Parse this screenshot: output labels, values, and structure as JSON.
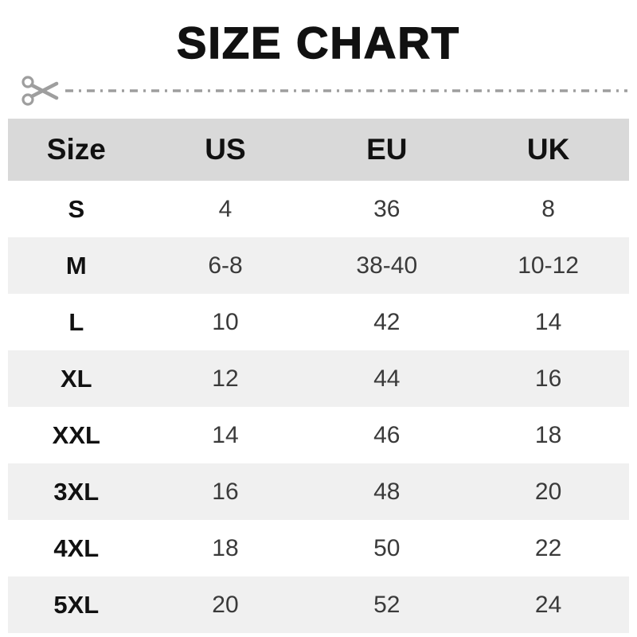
{
  "title": "SIZE CHART",
  "cut_line": {
    "icon": "scissors"
  },
  "chart_data": {
    "type": "table",
    "title": "SIZE CHART",
    "columns": [
      "Size",
      "US",
      "EU",
      "UK"
    ],
    "rows": [
      [
        "S",
        "4",
        "36",
        "8"
      ],
      [
        "M",
        "6-8",
        "38-40",
        "10-12"
      ],
      [
        "L",
        "10",
        "42",
        "14"
      ],
      [
        "XL",
        "12",
        "44",
        "16"
      ],
      [
        "XXL",
        "14",
        "46",
        "18"
      ],
      [
        "3XL",
        "16",
        "48",
        "20"
      ],
      [
        "4XL",
        "18",
        "50",
        "22"
      ],
      [
        "5XL",
        "20",
        "52",
        "24"
      ]
    ]
  },
  "colors": {
    "header_bg": "#d9d9d9",
    "alt_row_bg": "#f0f0f0",
    "text": "#111111",
    "number_text": "#3a3a3a",
    "cut_line": "#9e9e9e"
  }
}
